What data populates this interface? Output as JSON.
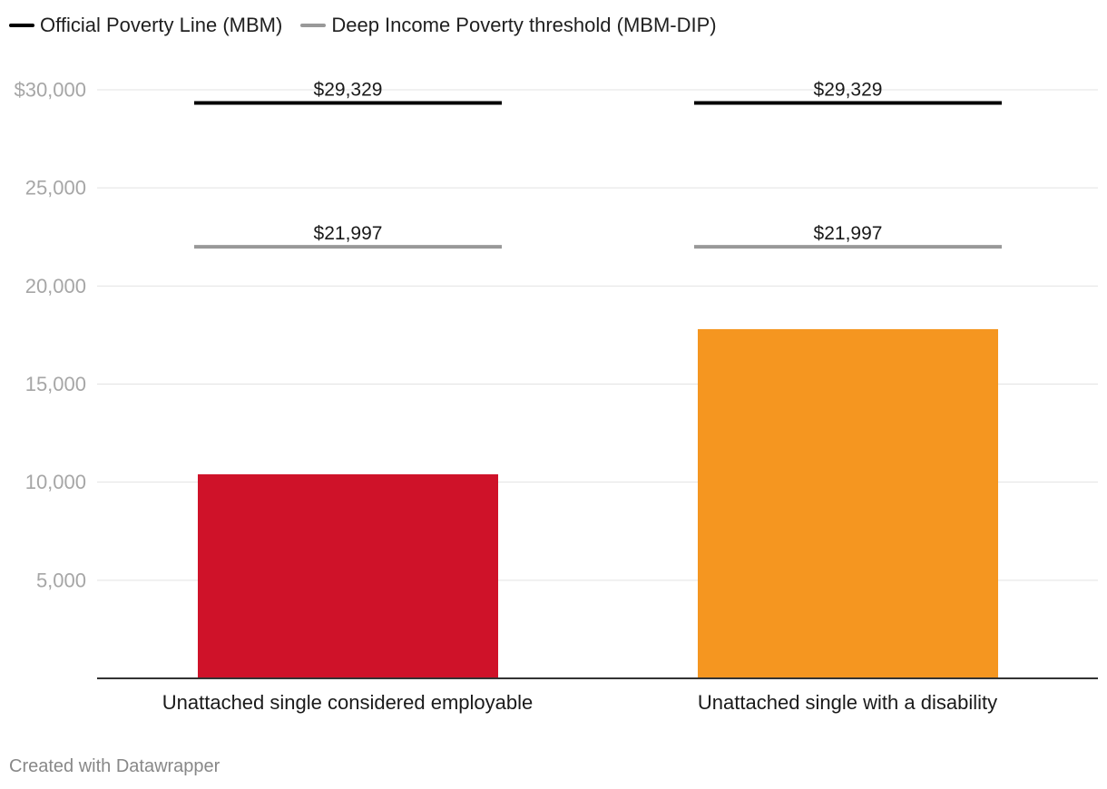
{
  "legend": {
    "items": [
      {
        "label": "Official Poverty Line (MBM)",
        "color": "#000000"
      },
      {
        "label": "Deep Income Poverty threshold (MBM-DIP)",
        "color": "#999999"
      }
    ]
  },
  "chart_data": {
    "type": "bar",
    "categories": [
      "Unattached single considered employable",
      "Unattached single with a disability"
    ],
    "values": [
      10400,
      17800
    ],
    "bar_colors": [
      "#cf1229",
      "#f59620"
    ],
    "ylim": [
      0,
      30000
    ],
    "yticks": [
      {
        "value": 5000,
        "label": "5,000"
      },
      {
        "value": 10000,
        "label": "10,000"
      },
      {
        "value": 15000,
        "label": "15,000"
      },
      {
        "value": 20000,
        "label": "20,000"
      },
      {
        "value": 25000,
        "label": "25,000"
      },
      {
        "value": 30000,
        "label": "$30,000"
      }
    ],
    "grid": true,
    "reference_lines": [
      {
        "name": "Official Poverty Line (MBM)",
        "color": "#000000",
        "values": [
          29329,
          29329
        ],
        "labels": [
          "$29,329",
          "$29,329"
        ]
      },
      {
        "name": "Deep Income Poverty threshold (MBM-DIP)",
        "color": "#999999",
        "values": [
          21997,
          21997
        ],
        "labels": [
          "$21,997",
          "$21,997"
        ]
      }
    ]
  },
  "footer": {
    "credit": "Created with Datawrapper"
  }
}
